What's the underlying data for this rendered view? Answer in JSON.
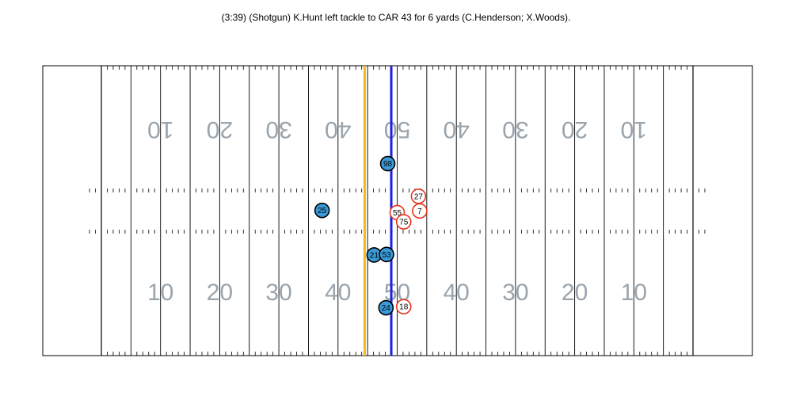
{
  "play": {
    "description": "(3:39) (Shotgun) K.Hunt left tackle to CAR 43 for 6 yards (C.Henderson; X.Woods)."
  },
  "field": {
    "yard_numbers": [
      "10",
      "20",
      "30",
      "40",
      "50",
      "40",
      "30",
      "20",
      "10"
    ],
    "line_of_scrimmage_yard": 49,
    "first_down_yard": 44.5,
    "colors": {
      "line_of_scrimmage": "#1f1fdd",
      "first_down": "#f5b820",
      "field_lines": "#000000",
      "numbers": "#9aa4ad"
    }
  },
  "players": {
    "offense": {
      "fill": "#3a9ad9",
      "stroke": "#000000",
      "items": [
        {
          "jersey": "25",
          "yard": 37.3,
          "lateral": 26.6
        },
        {
          "jersey": "98",
          "yard": 48.4,
          "lateral": 18.0
        },
        {
          "jersey": "21",
          "yard": 46.1,
          "lateral": 34.8
        },
        {
          "jersey": "53",
          "yard": 48.2,
          "lateral": 34.7
        },
        {
          "jersey": "24",
          "yard": 48.1,
          "lateral": 44.5
        }
      ]
    },
    "defense": {
      "fill": "#ffffff",
      "stroke": "#e8341c",
      "items": [
        {
          "jersey": "27",
          "yard": 53.6,
          "lateral": 24.0
        },
        {
          "jersey": "55",
          "yard": 50.0,
          "lateral": 27.0
        },
        {
          "jersey": "7",
          "yard": 53.8,
          "lateral": 26.7
        },
        {
          "jersey": "75",
          "yard": 51.1,
          "lateral": 28.7
        },
        {
          "jersey": "18",
          "yard": 51.1,
          "lateral": 44.3
        }
      ]
    }
  }
}
